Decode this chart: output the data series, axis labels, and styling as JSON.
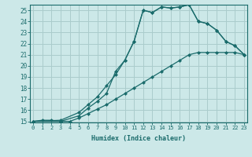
{
  "xlabel": "Humidex (Indice chaleur)",
  "bg_color": "#cce8e8",
  "grid_color": "#aacccc",
  "line_color": "#1a6b6b",
  "xlim": [
    0,
    23
  ],
  "ylim": [
    15,
    25.5
  ],
  "xticks": [
    0,
    1,
    2,
    3,
    4,
    5,
    6,
    7,
    8,
    9,
    10,
    11,
    12,
    13,
    14,
    15,
    16,
    17,
    18,
    19,
    20,
    21,
    22,
    23
  ],
  "yticks": [
    15,
    16,
    17,
    18,
    19,
    20,
    21,
    22,
    23,
    24,
    25
  ],
  "line1_x": [
    0,
    1,
    2,
    3,
    4,
    5,
    6,
    7,
    8,
    9,
    10,
    11,
    12,
    13,
    14,
    15,
    16,
    17,
    18,
    19,
    20,
    21,
    22,
    23
  ],
  "line1_y": [
    15.0,
    15.1,
    15.1,
    15.0,
    15.0,
    15.3,
    15.7,
    16.1,
    16.5,
    17.0,
    17.5,
    18.0,
    18.5,
    19.0,
    19.5,
    20.0,
    20.5,
    21.0,
    21.2,
    21.2,
    21.2,
    21.2,
    21.2,
    21.0
  ],
  "line1_markers_x": [
    0,
    1,
    2,
    3,
    4,
    5,
    6,
    7,
    8,
    9,
    10,
    11,
    12,
    13,
    14,
    15,
    16,
    17,
    18,
    19,
    20,
    21,
    22,
    23
  ],
  "line1_markers_y": [
    15.0,
    15.1,
    15.1,
    15.0,
    15.0,
    15.3,
    15.7,
    16.1,
    16.5,
    17.0,
    17.5,
    18.0,
    18.5,
    19.0,
    19.5,
    20.0,
    20.5,
    21.0,
    21.2,
    21.2,
    21.2,
    21.2,
    21.2,
    21.0
  ],
  "line2_x": [
    0,
    3,
    5,
    6,
    7,
    8,
    9,
    10,
    11,
    12,
    13,
    14,
    15,
    16,
    17,
    18,
    19,
    20,
    21,
    22,
    23
  ],
  "line2_y": [
    15.0,
    15.0,
    15.5,
    16.2,
    16.8,
    17.5,
    19.5,
    20.5,
    22.2,
    25.0,
    24.8,
    25.3,
    25.2,
    25.3,
    25.5,
    24.0,
    23.8,
    23.2,
    22.2,
    21.8,
    21.0
  ],
  "line3_x": [
    0,
    3,
    5,
    6,
    7,
    8,
    9,
    10,
    11,
    12,
    13,
    14,
    15,
    16,
    17,
    18,
    19,
    20,
    21,
    22,
    23
  ],
  "line3_y": [
    15.0,
    15.1,
    15.8,
    16.5,
    17.2,
    18.2,
    19.2,
    20.5,
    22.2,
    25.0,
    24.8,
    25.3,
    25.2,
    25.3,
    25.5,
    24.0,
    23.8,
    23.2,
    22.2,
    21.8,
    21.0
  ],
  "marker_size": 2.5,
  "line_width": 0.9
}
